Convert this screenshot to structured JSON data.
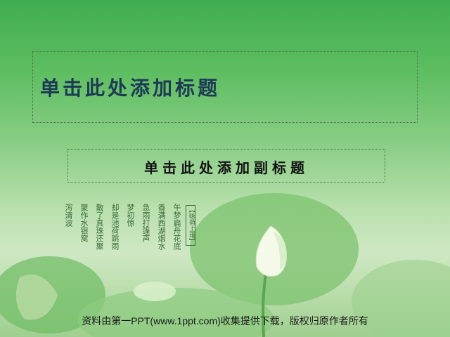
{
  "slide": {
    "title_placeholder": "单击此处添加标题",
    "subtitle_placeholder": "单击此处添加副标题",
    "poem_tag": "【咏荷上雨】",
    "poem_lines": [
      "午梦扁舟花底",
      "香满西湖烟水",
      "急雨打篷声",
      "梦初惊",
      "却是池荷跳雨",
      "散了真珠还聚",
      "聚作水银窝",
      "泻清波"
    ],
    "footer_text": "资料由第一PPT(www.1ppt.com)收集提供下载，版权归原作者所有"
  },
  "colors": {
    "title": "#1d3a55",
    "subtitle": "#111111",
    "poem": "#3d6a3a",
    "border": "#4a6f4a"
  }
}
